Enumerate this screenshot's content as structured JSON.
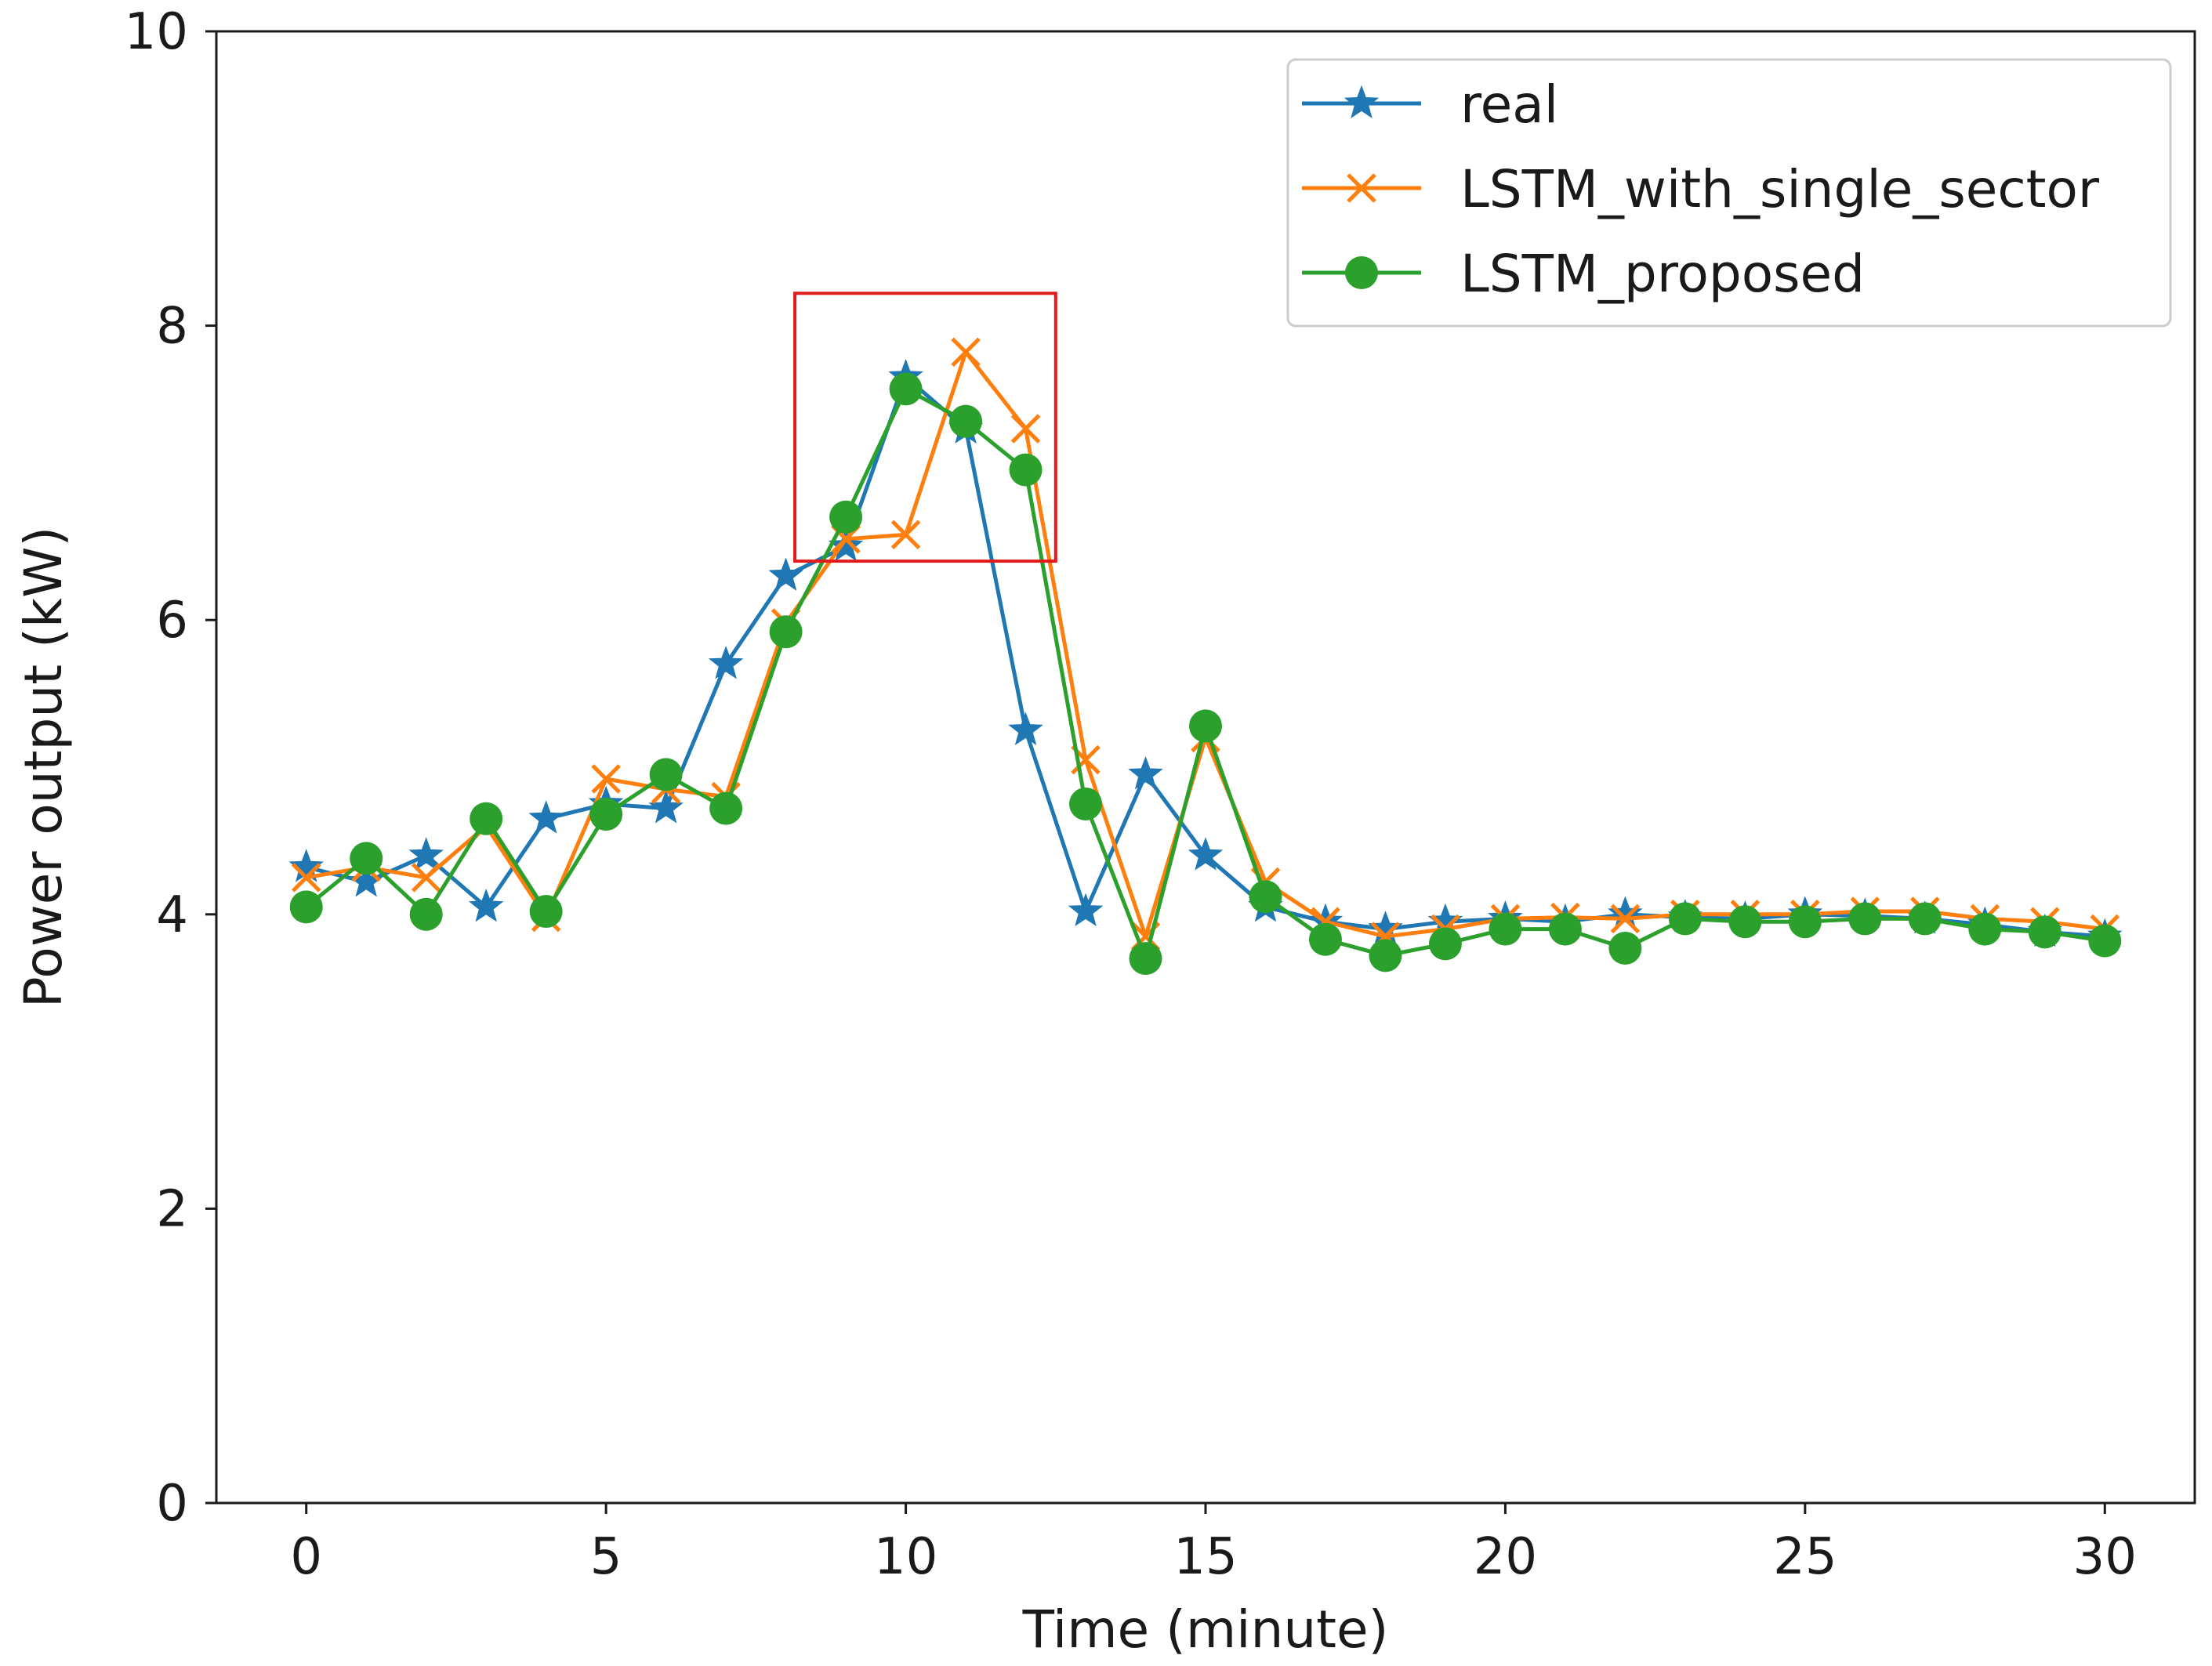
{
  "chart_data": {
    "type": "line",
    "title": "",
    "xlabel": "Time (minute)",
    "ylabel": "Power output (kW)",
    "xlim": [
      -1.5,
      31.5
    ],
    "ylim": [
      0,
      10
    ],
    "xticks": [
      0,
      5,
      10,
      15,
      20,
      25,
      30
    ],
    "yticks": [
      0,
      2,
      4,
      6,
      8,
      10
    ],
    "grid": false,
    "legend_position": "top-right",
    "x": [
      0,
      1,
      2,
      3,
      4,
      5,
      6,
      7,
      8,
      9,
      10,
      11,
      12,
      13,
      14,
      15,
      16,
      17,
      18,
      19,
      20,
      21,
      22,
      23,
      24,
      25,
      26,
      27,
      28,
      29,
      30
    ],
    "series": [
      {
        "name": "real",
        "color": "#1f77b4",
        "marker": "star",
        "values": [
          4.32,
          4.22,
          4.4,
          4.05,
          4.65,
          4.75,
          4.72,
          5.7,
          6.3,
          6.5,
          7.65,
          7.3,
          5.25,
          4.02,
          4.95,
          4.4,
          4.05,
          3.95,
          3.9,
          3.95,
          3.97,
          3.95,
          4.0,
          3.98,
          3.97,
          4.0,
          3.99,
          3.97,
          3.93,
          3.88,
          3.85
        ]
      },
      {
        "name": "LSTM_with_single_sector",
        "color": "#ff7f0e",
        "marker": "x",
        "values": [
          4.25,
          4.32,
          4.25,
          4.6,
          3.98,
          4.92,
          4.85,
          4.8,
          5.98,
          6.55,
          6.58,
          7.82,
          7.3,
          5.05,
          3.85,
          5.2,
          4.22,
          3.95,
          3.85,
          3.9,
          3.97,
          3.98,
          3.97,
          4.0,
          4.0,
          4.0,
          4.02,
          4.02,
          3.97,
          3.95,
          3.9
        ]
      },
      {
        "name": "LSTM_proposed",
        "color": "#2ca02c",
        "marker": "circle",
        "values": [
          4.05,
          4.38,
          4.0,
          4.65,
          4.02,
          4.68,
          4.95,
          4.72,
          5.92,
          6.7,
          7.57,
          7.35,
          7.02,
          4.75,
          3.7,
          5.28,
          4.12,
          3.83,
          3.72,
          3.8,
          3.9,
          3.9,
          3.77,
          3.97,
          3.95,
          3.95,
          3.97,
          3.97,
          3.9,
          3.88,
          3.82
        ]
      }
    ],
    "annotations": [
      {
        "type": "rectangle",
        "color": "#e31a1c",
        "x_range": [
          8.15,
          12.5
        ],
        "y_range": [
          6.4,
          8.22
        ]
      }
    ]
  }
}
